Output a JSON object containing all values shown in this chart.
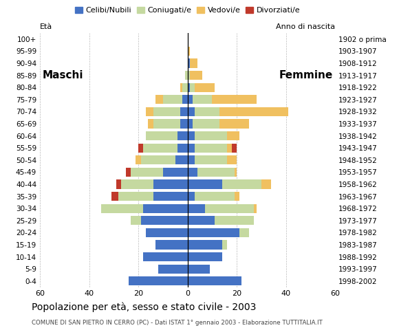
{
  "age_groups": [
    "0-4",
    "5-9",
    "10-14",
    "15-19",
    "20-24",
    "25-29",
    "30-34",
    "35-39",
    "40-44",
    "45-49",
    "50-54",
    "55-59",
    "60-64",
    "65-69",
    "70-74",
    "75-79",
    "80-84",
    "85-89",
    "90-94",
    "95-99",
    "100+"
  ],
  "birth_years": [
    "1998-2002",
    "1993-1997",
    "1988-1992",
    "1983-1987",
    "1978-1982",
    "1973-1977",
    "1968-1972",
    "1963-1967",
    "1958-1962",
    "1953-1957",
    "1948-1952",
    "1943-1947",
    "1938-1942",
    "1933-1937",
    "1928-1932",
    "1923-1927",
    "1918-1922",
    "1913-1917",
    "1908-1912",
    "1903-1907",
    "1902 o prima"
  ],
  "males": {
    "celibi": [
      24,
      12,
      18,
      13,
      17,
      19,
      18,
      14,
      14,
      10,
      5,
      4,
      4,
      3,
      3,
      2,
      0,
      0,
      0,
      0,
      0
    ],
    "coniugati": [
      0,
      0,
      0,
      0,
      0,
      4,
      17,
      14,
      13,
      13,
      14,
      14,
      13,
      11,
      11,
      8,
      2,
      1,
      0,
      0,
      0
    ],
    "vedovi": [
      0,
      0,
      0,
      0,
      0,
      0,
      0,
      0,
      0,
      0,
      2,
      0,
      0,
      2,
      3,
      3,
      1,
      0,
      0,
      0,
      0
    ],
    "divorziati": [
      0,
      0,
      0,
      0,
      0,
      0,
      0,
      3,
      2,
      2,
      0,
      2,
      0,
      0,
      0,
      0,
      0,
      0,
      0,
      0,
      0
    ]
  },
  "females": {
    "nubili": [
      22,
      9,
      14,
      14,
      21,
      11,
      7,
      3,
      14,
      4,
      3,
      3,
      3,
      2,
      3,
      2,
      1,
      0,
      1,
      0,
      0
    ],
    "coniugate": [
      0,
      0,
      0,
      2,
      4,
      16,
      20,
      16,
      16,
      15,
      13,
      13,
      13,
      11,
      10,
      8,
      2,
      1,
      0,
      0,
      0
    ],
    "vedove": [
      0,
      0,
      0,
      0,
      0,
      0,
      1,
      2,
      4,
      1,
      4,
      2,
      5,
      12,
      28,
      18,
      8,
      5,
      3,
      1,
      0
    ],
    "divorziate": [
      0,
      0,
      0,
      0,
      0,
      0,
      0,
      0,
      0,
      0,
      0,
      2,
      0,
      0,
      0,
      0,
      0,
      0,
      0,
      0,
      0
    ]
  },
  "colors": {
    "celibi": "#4472c4",
    "coniugati": "#c5d9a0",
    "vedovi": "#f0c060",
    "divorziati": "#c0392b"
  },
  "xlim": 60,
  "title": "Popolazione per età, sesso e stato civile - 2003",
  "subtitle": "COMUNE DI SAN PIETRO IN CERRO (PC) - Dati ISTAT 1° gennaio 2003 - Elaborazione TUTTITALIA.IT",
  "legend_labels": [
    "Celibi/Nubili",
    "Coniugati/e",
    "Vedovi/e",
    "Divorziati/e"
  ],
  "label_maschi": "Maschi",
  "label_femmine": "Femmine",
  "ylabel": "Età",
  "ylabel_right": "Anno di nascita"
}
